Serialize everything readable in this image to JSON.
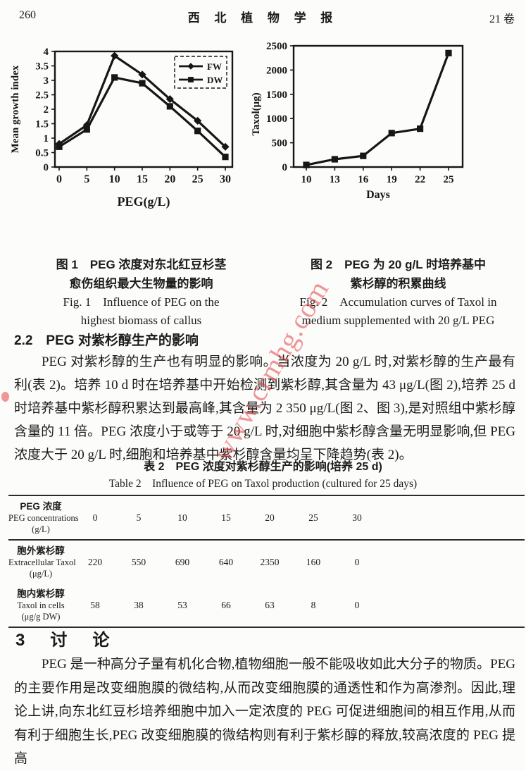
{
  "header": {
    "page_number": "260",
    "journal_title": "西 北 植 物 学 报",
    "volume": "21 卷"
  },
  "watermark": {
    "text": "www.crmhg.com",
    "color": "#e24444",
    "opacity": 0.55
  },
  "chart_data": [
    {
      "id": "figure1",
      "type": "line",
      "x": [
        0,
        5,
        10,
        15,
        20,
        25,
        30
      ],
      "series": [
        {
          "name": "FW",
          "marker": "diamond",
          "values": [
            0.8,
            1.45,
            3.85,
            3.2,
            2.35,
            1.6,
            0.7
          ]
        },
        {
          "name": "DW",
          "marker": "square",
          "values": [
            0.7,
            1.3,
            3.1,
            2.9,
            2.1,
            1.25,
            0.35
          ]
        }
      ],
      "xlabel": "PEG(g/L)",
      "ylabel": "Mean growth index",
      "ylim": [
        0,
        4
      ],
      "yticks": [
        0,
        0.5,
        1,
        1.5,
        2,
        2.5,
        3,
        3.5,
        4
      ],
      "ytick_labels": [
        "0",
        "0.5",
        "1",
        "1.5",
        "2",
        "2.5",
        "3",
        "3.5",
        "4"
      ],
      "xtick_labels": [
        "0",
        "5",
        "10",
        "15",
        "20",
        "25",
        "30"
      ],
      "legend_position": "top-right",
      "grid": false,
      "line_color": "#161616"
    },
    {
      "id": "figure2",
      "type": "line",
      "x": [
        10,
        13,
        16,
        19,
        22,
        25
      ],
      "series": [
        {
          "name": "Taxol",
          "marker": "square",
          "values": [
            43,
            160,
            230,
            700,
            790,
            2350
          ]
        }
      ],
      "xlabel": "Days",
      "ylabel": "Taxol(μg)",
      "ylim": [
        0,
        2500
      ],
      "yticks": [
        0,
        500,
        1000,
        1500,
        2000,
        2500
      ],
      "ytick_labels": [
        "0",
        "500",
        "1000",
        "1500",
        "2000",
        "2500"
      ],
      "xtick_labels": [
        "10",
        "13",
        "16",
        "19",
        "22",
        "25"
      ],
      "legend_position": "none",
      "grid": false,
      "line_color": "#161616"
    }
  ],
  "figure1_caption": {
    "zh1": "图 1　PEG 浓度对东北红豆杉茎",
    "zh2": "愈伤组织最大生物量的影响",
    "en1": "Fig. 1　Influence of PEG on the",
    "en2": "highest biomass of callus"
  },
  "figure2_caption": {
    "zh1": "图 2　PEG 为 20 g/L 时培养基中",
    "zh2": "紫杉醇的积累曲线",
    "en1": "Fig. 2　Accumulation curves of Taxol in",
    "en2": "medium supplemented with 20 g/L PEG"
  },
  "section22": {
    "heading": "2.2　PEG 对紫杉醇生产的影响",
    "paragraph": "PEG 对紫杉醇的生产也有明显的影响。当浓度为 20 g/L 时,对紫杉醇的生产最有利(表 2)。培养 10 d 时在培养基中开始检测到紫杉醇,其含量为 43 μg/L(图 2),培养 25 d 时培养基中紫杉醇积累达到最高峰,其含量为 2 350 μg/L(图 2、图 3),是对照组中紫杉醇含量的 11 倍。PEG 浓度小于或等于 20 g/L 时,对细胞中紫杉醇含量无明显影响,但 PEG 浓度大于 20 g/L 时,细胞和培养基中紫杉醇含量均呈下降趋势(表 2)。"
  },
  "table2": {
    "title_zh": "表 2　PEG 浓度对紫杉醇生产的影响(培养 25 d)",
    "title_en": "Table 2　Influence of PEG on Taxol production (cultured for 25 days)",
    "header_row": {
      "label_lines": [
        "PEG 浓度",
        "PEG concentrations",
        "(g/L)"
      ],
      "values": [
        "0",
        "5",
        "10",
        "15",
        "20",
        "25",
        "30"
      ]
    },
    "rows": [
      {
        "label_lines": [
          "胞外紫杉醇",
          "Extracellular Taxol",
          "(μg/L)"
        ],
        "values": [
          "220",
          "550",
          "690",
          "640",
          "2350",
          "160",
          "0"
        ]
      },
      {
        "label_lines": [
          "胞内紫杉醇",
          "Taxol in cells",
          "(μg/g DW)"
        ],
        "values": [
          "58",
          "38",
          "53",
          "66",
          "63",
          "8",
          "0"
        ]
      }
    ]
  },
  "section3": {
    "heading": "3　讨　论",
    "paragraph": "PEG 是一种高分子量有机化合物,植物细胞一般不能吸收如此大分子的物质。PEG 的主要作用是改变细胞膜的微结构,从而改变细胞膜的通透性和作为高渗剂。因此,理论上讲,向东北红豆杉培养细胞中加入一定浓度的 PEG 可促进细胞间的相互作用,从而有利于细胞生长,PEG 改变细胞膜的微结构则有利于紫杉醇的释放,较高浓度的 PEG 提高"
  }
}
